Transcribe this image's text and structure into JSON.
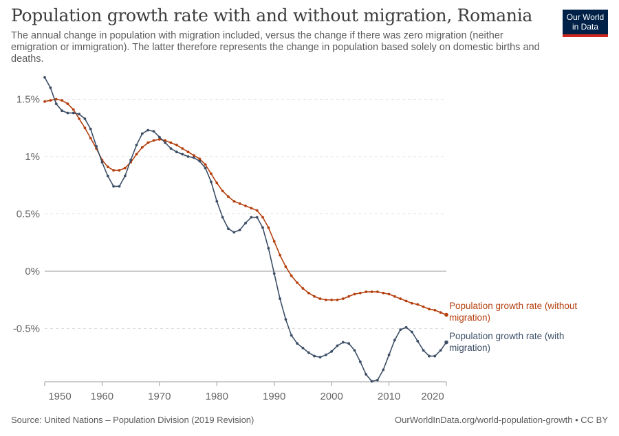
{
  "header": {
    "title": "Population growth rate with and without migration, Romania",
    "subtitle": "The annual change in population with migration included, versus the change if there was zero migration (neither emigration or immigration). The latter therefore represents the change in population based solely on domestic births and deaths.",
    "logo_line1": "Our World",
    "logo_line2": "in Data"
  },
  "footer": {
    "source": "Source: United Nations – Population Division (2019 Revision)",
    "credit": "OurWorldInData.org/world-population-growth • CC BY"
  },
  "colors": {
    "without_migration": "#b5400f",
    "with_migration": "#3c4e66",
    "grid": "#dddddd",
    "zero_line": "#999999"
  },
  "chart_data": {
    "type": "line",
    "title": "Population growth rate with and without migration, Romania",
    "xlabel": "",
    "ylabel": "",
    "xlim": [
      1950,
      2020
    ],
    "ylim": [
      -0.95,
      1.7
    ],
    "grid": true,
    "legend": "labels at right end of lines",
    "x_ticks": [
      {
        "value": 1950,
        "label": "1950"
      },
      {
        "value": 1960,
        "label": "1960"
      },
      {
        "value": 1970,
        "label": "1970"
      },
      {
        "value": 1980,
        "label": "1980"
      },
      {
        "value": 1990,
        "label": "1990"
      },
      {
        "value": 2000,
        "label": "2000"
      },
      {
        "value": 2010,
        "label": "2010"
      },
      {
        "value": 2020,
        "label": "2020"
      }
    ],
    "y_ticks": [
      {
        "value": 1.5,
        "label": "1.5%"
      },
      {
        "value": 1.0,
        "label": "1%"
      },
      {
        "value": 0.5,
        "label": "0.5%"
      },
      {
        "value": 0.0,
        "label": "0%"
      },
      {
        "value": -0.5,
        "label": "-0.5%"
      }
    ],
    "x": [
      1950,
      1951,
      1952,
      1953,
      1954,
      1955,
      1956,
      1957,
      1958,
      1959,
      1960,
      1961,
      1962,
      1963,
      1964,
      1965,
      1966,
      1967,
      1968,
      1969,
      1970,
      1971,
      1972,
      1973,
      1974,
      1975,
      1976,
      1977,
      1978,
      1979,
      1980,
      1981,
      1982,
      1983,
      1984,
      1985,
      1986,
      1987,
      1988,
      1989,
      1990,
      1991,
      1992,
      1993,
      1994,
      1995,
      1996,
      1997,
      1998,
      1999,
      2000,
      2001,
      2002,
      2003,
      2004,
      2005,
      2006,
      2007,
      2008,
      2009,
      2010,
      2011,
      2012,
      2013,
      2014,
      2015,
      2016,
      2017,
      2018,
      2019,
      2020
    ],
    "series": [
      {
        "name": "Population growth rate (without migration)",
        "label_line1": "Population growth rate (without",
        "label_line2": "migration)",
        "values": [
          1.48,
          1.49,
          1.5,
          1.49,
          1.46,
          1.41,
          1.33,
          1.25,
          1.16,
          1.07,
          0.97,
          0.91,
          0.88,
          0.88,
          0.9,
          0.95,
          1.02,
          1.08,
          1.12,
          1.14,
          1.15,
          1.14,
          1.12,
          1.1,
          1.07,
          1.04,
          1.01,
          0.98,
          0.93,
          0.85,
          0.77,
          0.7,
          0.65,
          0.61,
          0.59,
          0.57,
          0.55,
          0.53,
          0.47,
          0.38,
          0.26,
          0.14,
          0.04,
          -0.04,
          -0.1,
          -0.15,
          -0.19,
          -0.22,
          -0.24,
          -0.25,
          -0.25,
          -0.25,
          -0.24,
          -0.22,
          -0.2,
          -0.19,
          -0.18,
          -0.18,
          -0.18,
          -0.19,
          -0.2,
          -0.22,
          -0.24,
          -0.26,
          -0.28,
          -0.29,
          -0.31,
          -0.33,
          -0.34,
          -0.36,
          -0.38
        ]
      },
      {
        "name": "Population growth rate (with migration)",
        "label_line1": "Population growth rate (with",
        "label_line2": "migration)",
        "values": [
          1.69,
          1.6,
          1.46,
          1.4,
          1.38,
          1.38,
          1.37,
          1.33,
          1.24,
          1.09,
          0.95,
          0.83,
          0.74,
          0.74,
          0.83,
          0.97,
          1.1,
          1.2,
          1.23,
          1.22,
          1.17,
          1.12,
          1.07,
          1.04,
          1.02,
          1.0,
          0.99,
          0.96,
          0.9,
          0.78,
          0.61,
          0.47,
          0.37,
          0.34,
          0.36,
          0.42,
          0.47,
          0.47,
          0.38,
          0.2,
          -0.02,
          -0.24,
          -0.42,
          -0.56,
          -0.63,
          -0.67,
          -0.71,
          -0.74,
          -0.75,
          -0.73,
          -0.7,
          -0.65,
          -0.62,
          -0.63,
          -0.69,
          -0.79,
          -0.9,
          -0.96,
          -0.95,
          -0.86,
          -0.73,
          -0.6,
          -0.51,
          -0.49,
          -0.53,
          -0.61,
          -0.69,
          -0.74,
          -0.74,
          -0.69,
          -0.62
        ]
      }
    ]
  }
}
